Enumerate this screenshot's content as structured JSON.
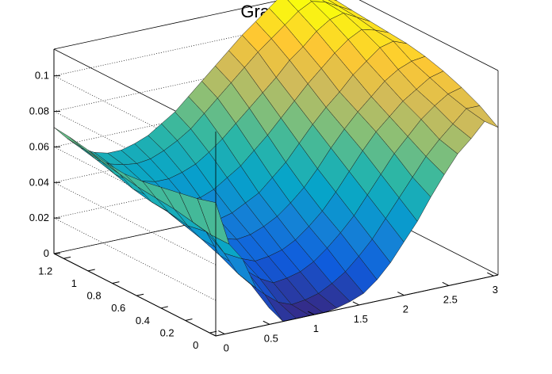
{
  "chart_data": {
    "type": "surface",
    "title": "Graph2D",
    "x_ticks": [
      "0",
      "0.5",
      "1",
      "1.5",
      "2",
      "2.5",
      "3"
    ],
    "y_ticks": [
      "0",
      "0.2",
      "0.4",
      "0.6",
      "0.8",
      "1",
      "1.2"
    ],
    "z_ticks": [
      "0",
      "0.02",
      "0.04",
      "0.06",
      "0.08",
      "0.1"
    ],
    "xlim": [
      -0.1,
      3.05
    ],
    "ylim": [
      -0.05,
      1.28
    ],
    "zlim": [
      0,
      0.115
    ],
    "grid": true,
    "colormap": [
      "#352a87",
      "#0f5cdd",
      "#1481d6",
      "#06a4ca",
      "#2eb7a4",
      "#87bf77",
      "#d1bb59",
      "#fec832",
      "#f9fb0e"
    ],
    "surface_x": [
      -0.1,
      0.05,
      0.2,
      0.35,
      0.5,
      0.65,
      0.8,
      0.95,
      1.1,
      1.25,
      1.4,
      1.55,
      1.7,
      1.85,
      2.0,
      2.15,
      2.3,
      2.45,
      2.6,
      2.75,
      2.9,
      3.05
    ],
    "surface_y": [
      -0.05,
      0.1,
      0.25,
      0.4,
      0.55,
      0.7,
      0.85,
      1.0,
      1.15,
      1.28
    ],
    "surface_z": [
      [
        0.075,
        0.05,
        0.04,
        0.022,
        0.009,
        0.0,
        0.0,
        0.0,
        0.0,
        0.001,
        0.003,
        0.006,
        0.012,
        0.02,
        0.03,
        0.04,
        0.052,
        0.063,
        0.073,
        0.08,
        0.088,
        0.083
      ],
      [
        0.072,
        0.05,
        0.038,
        0.025,
        0.017,
        0.01,
        0.004,
        0.001,
        0.002,
        0.004,
        0.008,
        0.013,
        0.02,
        0.028,
        0.038,
        0.048,
        0.058,
        0.068,
        0.076,
        0.083,
        0.09,
        0.09
      ],
      [
        0.07,
        0.052,
        0.045,
        0.03,
        0.024,
        0.018,
        0.012,
        0.008,
        0.009,
        0.011,
        0.015,
        0.021,
        0.028,
        0.036,
        0.046,
        0.056,
        0.066,
        0.074,
        0.082,
        0.088,
        0.093,
        0.095
      ],
      [
        0.068,
        0.054,
        0.043,
        0.034,
        0.028,
        0.023,
        0.018,
        0.015,
        0.016,
        0.018,
        0.022,
        0.028,
        0.035,
        0.044,
        0.054,
        0.064,
        0.073,
        0.08,
        0.087,
        0.092,
        0.097,
        0.099
      ],
      [
        0.066,
        0.055,
        0.045,
        0.037,
        0.031,
        0.027,
        0.024,
        0.022,
        0.023,
        0.026,
        0.03,
        0.036,
        0.043,
        0.052,
        0.062,
        0.071,
        0.079,
        0.086,
        0.093,
        0.098,
        0.101,
        0.102
      ],
      [
        0.065,
        0.056,
        0.046,
        0.04,
        0.035,
        0.031,
        0.029,
        0.028,
        0.03,
        0.034,
        0.038,
        0.045,
        0.052,
        0.061,
        0.07,
        0.078,
        0.085,
        0.093,
        0.099,
        0.105,
        0.107,
        0.104
      ],
      [
        0.066,
        0.058,
        0.048,
        0.043,
        0.039,
        0.036,
        0.035,
        0.035,
        0.038,
        0.043,
        0.048,
        0.055,
        0.062,
        0.07,
        0.078,
        0.086,
        0.093,
        0.1,
        0.106,
        0.11,
        0.108,
        0.105
      ],
      [
        0.068,
        0.06,
        0.051,
        0.046,
        0.044,
        0.042,
        0.042,
        0.044,
        0.047,
        0.052,
        0.058,
        0.065,
        0.072,
        0.079,
        0.086,
        0.094,
        0.1,
        0.107,
        0.112,
        0.114,
        0.11,
        0.106
      ],
      [
        0.07,
        0.062,
        0.054,
        0.05,
        0.048,
        0.047,
        0.048,
        0.051,
        0.055,
        0.06,
        0.067,
        0.074,
        0.081,
        0.088,
        0.095,
        0.101,
        0.107,
        0.113,
        0.117,
        0.115,
        0.111,
        0.107
      ],
      [
        0.071,
        0.063,
        0.056,
        0.052,
        0.05,
        0.05,
        0.052,
        0.055,
        0.06,
        0.065,
        0.072,
        0.079,
        0.086,
        0.093,
        0.1,
        0.106,
        0.112,
        0.118,
        0.12,
        0.117,
        0.112,
        0.108
      ]
    ]
  }
}
